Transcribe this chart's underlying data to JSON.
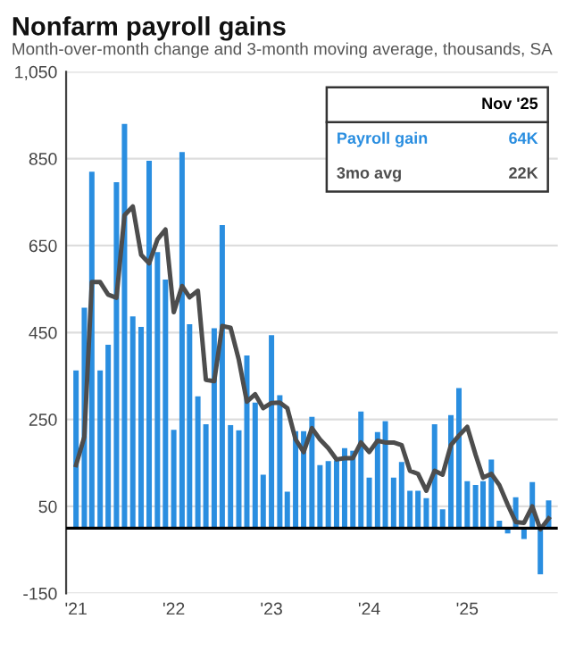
{
  "chart_data": {
    "type": "bar",
    "title": "Nonfarm payroll gains",
    "subtitle": "Month-over-month change and 3-month moving average, thousands, SA",
    "x": [
      "2021-01",
      "2021-02",
      "2021-03",
      "2021-04",
      "2021-05",
      "2021-06",
      "2021-07",
      "2021-08",
      "2021-09",
      "2021-10",
      "2021-11",
      "2021-12",
      "2022-01",
      "2022-02",
      "2022-03",
      "2022-04",
      "2022-05",
      "2022-06",
      "2022-07",
      "2022-08",
      "2022-09",
      "2022-10",
      "2022-11",
      "2022-12",
      "2023-01",
      "2023-02",
      "2023-03",
      "2023-04",
      "2023-05",
      "2023-06",
      "2023-07",
      "2023-08",
      "2023-09",
      "2023-10",
      "2023-11",
      "2023-12",
      "2024-01",
      "2024-02",
      "2024-03",
      "2024-04",
      "2024-05",
      "2024-06",
      "2024-07",
      "2024-08",
      "2024-09",
      "2024-10",
      "2024-11",
      "2024-12",
      "2025-01",
      "2025-02",
      "2025-03",
      "2025-04",
      "2025-05",
      "2025-06",
      "2025-07",
      "2025-08",
      "2025-09",
      "2025-10",
      "2025-11"
    ],
    "series": [
      {
        "name": "Payroll gain",
        "color": "#2a8ee0",
        "values": [
          363,
          507,
          820,
          363,
          422,
          796,
          930,
          487,
          463,
          845,
          635,
          572,
          226,
          865,
          469,
          303,
          239,
          460,
          697,
          237,
          225,
          397,
          289,
          123,
          444,
          306,
          84,
          223,
          223,
          256,
          145,
          154,
          156,
          184,
          178,
          268,
          116,
          221,
          246,
          116,
          152,
          86,
          86,
          69,
          239,
          43,
          260,
          322,
          108,
          99,
          108,
          158,
          17,
          -12,
          71,
          -25,
          106,
          -106,
          64
        ]
      },
      {
        "name": "3mo avg",
        "type": "line",
        "color": "#4d4d4d",
        "values": [
          145,
          210,
          566,
          566,
          537,
          530,
          720,
          740,
          629,
          609,
          664,
          687,
          497,
          557,
          531,
          546,
          341,
          338,
          465,
          461,
          387,
          291,
          308,
          276,
          288,
          289,
          276,
          204,
          175,
          230,
          204,
          184,
          158,
          161,
          161,
          197,
          175,
          201,
          197,
          197,
          191,
          132,
          125,
          86,
          132,
          123,
          191,
          213,
          233,
          169,
          116,
          125,
          99,
          54,
          14,
          12,
          50,
          -3,
          22
        ]
      }
    ],
    "ylim": [
      -150,
      1050
    ],
    "yticks": [
      -150,
      50,
      250,
      450,
      650,
      850,
      {
        "value": 1050,
        "label": "1,050"
      }
    ],
    "xlim": [
      "2020-11-25",
      "2025-12-05"
    ],
    "xticks": [
      {
        "value": "2021-01",
        "label": "'21"
      },
      {
        "value": "2022-01",
        "label": "'22"
      },
      {
        "value": "2023-01",
        "label": "'23"
      },
      {
        "value": "2024-01",
        "label": "'24"
      },
      {
        "value": "2025-01",
        "label": "'25"
      }
    ],
    "ref_lines": [
      {
        "axis": "y",
        "value": 0,
        "color": "#000000"
      }
    ],
    "grid": "y",
    "legend": "top right",
    "annotations": [
      "Nov '25",
      "64K",
      "22K"
    ]
  }
}
